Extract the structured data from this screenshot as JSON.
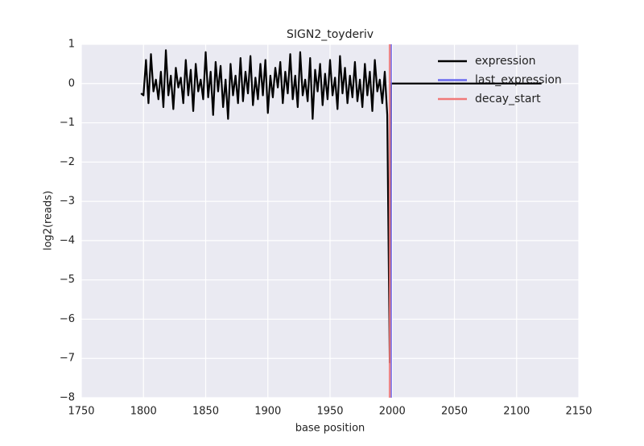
{
  "chart_data": {
    "type": "line",
    "title": "SIGN2_toyderiv",
    "xlabel": "base position",
    "ylabel": "log2(reads)",
    "xlim": [
      1750,
      2150
    ],
    "ylim": [
      -8,
      1
    ],
    "xticks": [
      1750,
      1800,
      1850,
      1900,
      1950,
      2000,
      2050,
      2100,
      2150
    ],
    "yticks": [
      1,
      0,
      {
        "value": -1,
        "label": "−1"
      },
      {
        "value": -2,
        "label": "−2"
      },
      {
        "value": -3,
        "label": "−3"
      },
      {
        "value": -4,
        "label": "−4"
      },
      {
        "value": -5,
        "label": "−5"
      },
      {
        "value": -6,
        "label": "−6"
      },
      {
        "value": -7,
        "label": "−7"
      },
      {
        "value": -8,
        "label": "−8"
      }
    ],
    "grid": true,
    "legend": "upper right",
    "x": [
      1798,
      1800,
      1802,
      1804,
      1806,
      1808,
      1810,
      1812,
      1814,
      1816,
      1818,
      1820,
      1822,
      1824,
      1826,
      1828,
      1830,
      1832,
      1834,
      1836,
      1838,
      1840,
      1842,
      1844,
      1846,
      1848,
      1850,
      1852,
      1854,
      1856,
      1858,
      1860,
      1862,
      1864,
      1866,
      1868,
      1870,
      1872,
      1874,
      1876,
      1878,
      1880,
      1882,
      1884,
      1886,
      1888,
      1890,
      1892,
      1894,
      1896,
      1898,
      1900,
      1902,
      1904,
      1906,
      1908,
      1910,
      1912,
      1914,
      1916,
      1918,
      1920,
      1922,
      1924,
      1926,
      1928,
      1930,
      1932,
      1934,
      1936,
      1938,
      1940,
      1942,
      1944,
      1946,
      1948,
      1950,
      1952,
      1954,
      1956,
      1958,
      1960,
      1962,
      1964,
      1966,
      1968,
      1970,
      1972,
      1974,
      1976,
      1978,
      1980,
      1982,
      1984,
      1986,
      1988,
      1990,
      1992,
      1994,
      1996,
      1998,
      1999,
      2120
    ],
    "series": [
      {
        "name": "expression",
        "color": "#000000",
        "values": [
          -0.25,
          -0.3,
          0.6,
          -0.5,
          0.75,
          -0.2,
          0.1,
          -0.4,
          0.3,
          -0.6,
          0.85,
          -0.3,
          0.2,
          -0.65,
          0.4,
          -0.1,
          0.15,
          -0.5,
          0.6,
          -0.3,
          0.35,
          -0.7,
          0.5,
          -0.2,
          0.1,
          -0.4,
          0.8,
          -0.35,
          0.3,
          -0.8,
          0.55,
          -0.2,
          0.45,
          -0.6,
          0.1,
          -0.9,
          0.5,
          -0.3,
          0.2,
          -0.5,
          0.65,
          -0.45,
          0.3,
          -0.25,
          0.7,
          -0.55,
          0.15,
          -0.4,
          0.5,
          -0.3,
          0.6,
          -0.75,
          0.2,
          -0.35,
          0.4,
          -0.1,
          0.55,
          -0.5,
          0.3,
          -0.25,
          0.75,
          -0.4,
          0.2,
          -0.6,
          0.8,
          -0.3,
          0.1,
          -0.45,
          0.65,
          -0.9,
          0.35,
          -0.2,
          0.5,
          -0.55,
          0.25,
          -0.4,
          0.6,
          -0.3,
          0.15,
          -0.65,
          0.7,
          -0.25,
          0.4,
          -0.5,
          0.2,
          -0.35,
          0.55,
          -0.45,
          0.1,
          -0.6,
          0.5,
          -0.3,
          0.3,
          -0.7,
          0.6,
          -0.2,
          0.1,
          -0.5,
          0.3,
          -0.8,
          -7.1,
          0,
          0
        ]
      }
    ],
    "vlines": [
      {
        "name": "last_expression",
        "color": "#6b6bf0",
        "x": 1999
      },
      {
        "name": "decay_start",
        "color": "#f07878",
        "x": 1998
      }
    ]
  }
}
